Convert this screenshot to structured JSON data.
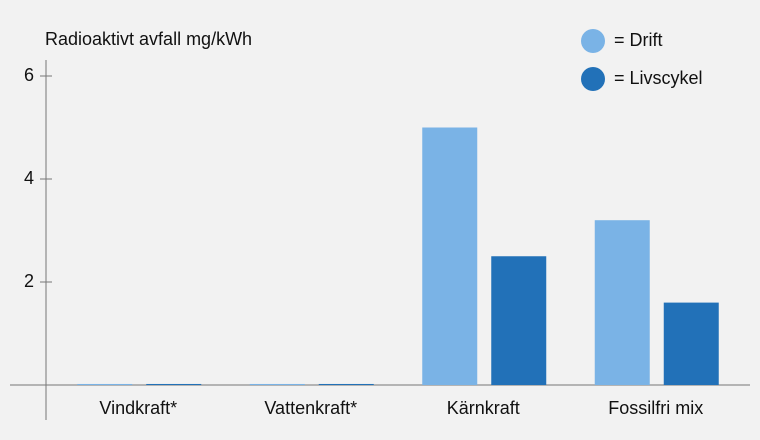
{
  "chart_data": {
    "type": "bar",
    "title": "Radioaktivt avfall mg/kWh",
    "categories": [
      "Vindkraft*",
      "Vattenkraft*",
      "Kärnkraft",
      "Fossilfri mix"
    ],
    "series": [
      {
        "name": "= Drift",
        "color": "#7ab3e6",
        "values": [
          0.02,
          0.02,
          5.0,
          3.2
        ]
      },
      {
        "name": "= Livscykel",
        "color": "#2271b8",
        "values": [
          0.02,
          0.02,
          2.5,
          1.6
        ]
      }
    ],
    "ylim": [
      0,
      6
    ],
    "yticks": [
      2,
      4,
      6
    ],
    "grid": false,
    "legend": "top-right"
  }
}
